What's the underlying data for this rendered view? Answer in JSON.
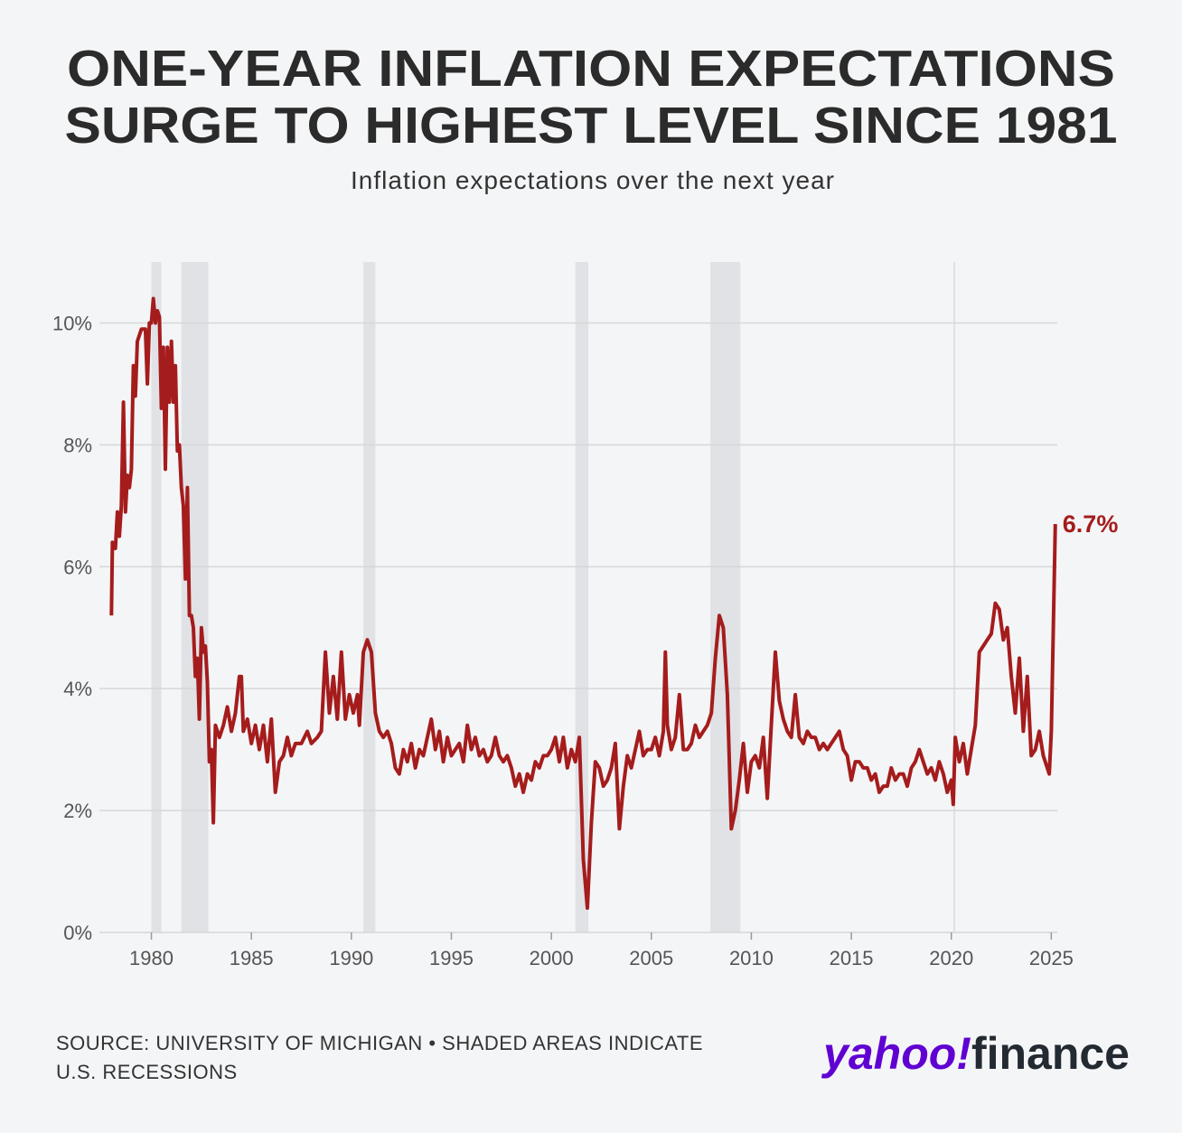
{
  "chart_data": {
    "type": "line",
    "title": [
      "ONE-YEAR INFLATION EXPECTATIONS",
      "SURGE TO HIGHEST LEVEL SINCE 1981"
    ],
    "subtitle": "Inflation expectations over the next year",
    "source": [
      "SOURCE: UNIVERSITY OF MICHIGAN • SHADED AREAS INDICATE",
      "U.S. RECESSIONS"
    ],
    "branding": {
      "brand": "yahoo!",
      "product": "finance"
    },
    "xlim": [
      1977.4,
      2025.3
    ],
    "ylim": [
      0,
      11
    ],
    "xticks": [
      1980,
      1985,
      1990,
      1995,
      2000,
      2005,
      2010,
      2015,
      2020,
      2025
    ],
    "yticks": [
      {
        "value": 0,
        "label": "0%"
      },
      {
        "value": 2,
        "label": "2%"
      },
      {
        "value": 4,
        "label": "4%"
      },
      {
        "value": 6,
        "label": "6%"
      },
      {
        "value": 8,
        "label": "8%"
      },
      {
        "value": 10,
        "label": "10%"
      }
    ],
    "grid": true,
    "recessions": [
      [
        1980.0,
        1980.5
      ],
      [
        1981.5,
        1982.85
      ],
      [
        1990.6,
        1991.2
      ],
      [
        2001.2,
        2001.85
      ],
      [
        2007.95,
        2009.45
      ],
      [
        2020.1,
        2020.2
      ]
    ],
    "annotations": [
      {
        "text": "6.7%",
        "x": 2025.2,
        "y": 6.7
      }
    ],
    "series": [
      {
        "name": "One-year inflation expectations",
        "color": "#a51c1c",
        "x": [
          1978.0,
          1978.05,
          1978.2,
          1978.3,
          1978.4,
          1978.5,
          1978.6,
          1978.7,
          1978.8,
          1978.9,
          1979.0,
          1979.1,
          1979.2,
          1979.3,
          1979.5,
          1979.7,
          1979.8,
          1979.9,
          1980.0,
          1980.1,
          1980.2,
          1980.3,
          1980.4,
          1980.5,
          1980.6,
          1980.7,
          1980.8,
          1980.9,
          1981.0,
          1981.1,
          1981.2,
          1981.3,
          1981.4,
          1981.5,
          1981.6,
          1981.7,
          1981.8,
          1981.9,
          1982.0,
          1982.1,
          1982.2,
          1982.3,
          1982.4,
          1982.5,
          1982.6,
          1982.7,
          1982.8,
          1982.9,
          1983.0,
          1983.1,
          1983.2,
          1983.4,
          1983.6,
          1983.8,
          1984.0,
          1984.2,
          1984.4,
          1984.5,
          1984.6,
          1984.8,
          1985.0,
          1985.2,
          1985.4,
          1985.6,
          1985.8,
          1986.0,
          1986.2,
          1986.4,
          1986.6,
          1986.8,
          1987.0,
          1987.2,
          1987.5,
          1987.8,
          1988.0,
          1988.3,
          1988.5,
          1988.7,
          1988.9,
          1989.1,
          1989.3,
          1989.5,
          1989.7,
          1989.9,
          1990.1,
          1990.3,
          1990.4,
          1990.6,
          1990.8,
          1991.0,
          1991.2,
          1991.4,
          1991.6,
          1991.8,
          1992.0,
          1992.2,
          1992.4,
          1992.6,
          1992.8,
          1993.0,
          1993.2,
          1993.4,
          1993.6,
          1993.8,
          1994.0,
          1994.2,
          1994.4,
          1994.6,
          1994.8,
          1995.0,
          1995.2,
          1995.4,
          1995.6,
          1995.8,
          1996.0,
          1996.2,
          1996.4,
          1996.6,
          1996.8,
          1997.0,
          1997.2,
          1997.4,
          1997.6,
          1997.8,
          1998.0,
          1998.2,
          1998.4,
          1998.6,
          1998.8,
          1999.0,
          1999.2,
          1999.4,
          1999.6,
          1999.8,
          2000.0,
          2000.2,
          2000.4,
          2000.6,
          2000.8,
          2001.0,
          2001.2,
          2001.4,
          2001.6,
          2001.8,
          2002.0,
          2002.2,
          2002.4,
          2002.6,
          2002.8,
          2003.0,
          2003.2,
          2003.4,
          2003.6,
          2003.8,
          2004.0,
          2004.2,
          2004.4,
          2004.6,
          2004.8,
          2005.0,
          2005.2,
          2005.4,
          2005.6,
          2005.7,
          2005.8,
          2006.0,
          2006.2,
          2006.4,
          2006.6,
          2006.8,
          2007.0,
          2007.2,
          2007.4,
          2007.6,
          2007.8,
          2008.0,
          2008.2,
          2008.4,
          2008.6,
          2008.8,
          2009.0,
          2009.2,
          2009.4,
          2009.6,
          2009.8,
          2010.0,
          2010.2,
          2010.4,
          2010.6,
          2010.8,
          2011.0,
          2011.2,
          2011.4,
          2011.6,
          2011.8,
          2012.0,
          2012.2,
          2012.4,
          2012.6,
          2012.8,
          2013.0,
          2013.2,
          2013.4,
          2013.6,
          2013.8,
          2014.0,
          2014.2,
          2014.4,
          2014.6,
          2014.8,
          2015.0,
          2015.2,
          2015.4,
          2015.6,
          2015.8,
          2016.0,
          2016.2,
          2016.4,
          2016.6,
          2016.8,
          2017.0,
          2017.2,
          2017.4,
          2017.6,
          2017.8,
          2018.0,
          2018.2,
          2018.4,
          2018.6,
          2018.8,
          2019.0,
          2019.2,
          2019.4,
          2019.6,
          2019.8,
          2020.0,
          2020.1,
          2020.2,
          2020.4,
          2020.6,
          2020.8,
          2021.0,
          2021.2,
          2021.4,
          2021.6,
          2021.8,
          2022.0,
          2022.2,
          2022.4,
          2022.6,
          2022.8,
          2023.0,
          2023.2,
          2023.4,
          2023.6,
          2023.8,
          2024.0,
          2024.2,
          2024.4,
          2024.6,
          2024.8,
          2024.9,
          2025.0,
          2025.1,
          2025.2
        ],
        "values": [
          5.2,
          6.4,
          6.3,
          6.9,
          6.5,
          7.0,
          8.7,
          6.9,
          7.5,
          7.3,
          7.6,
          9.3,
          8.8,
          9.7,
          9.9,
          9.9,
          9.0,
          10.0,
          10.0,
          10.4,
          10.0,
          10.2,
          10.1,
          8.6,
          9.6,
          7.6,
          9.6,
          8.7,
          9.7,
          8.7,
          9.3,
          7.9,
          8.0,
          7.3,
          7.0,
          5.8,
          7.3,
          5.2,
          5.2,
          5.0,
          4.2,
          4.5,
          3.5,
          5.0,
          4.6,
          4.7,
          4.1,
          2.8,
          3.0,
          1.8,
          3.4,
          3.2,
          3.4,
          3.7,
          3.3,
          3.6,
          4.2,
          4.2,
          3.3,
          3.5,
          3.1,
          3.4,
          3.0,
          3.4,
          2.8,
          3.5,
          2.3,
          2.8,
          2.9,
          3.2,
          2.9,
          3.1,
          3.1,
          3.3,
          3.1,
          3.2,
          3.3,
          4.6,
          3.6,
          4.2,
          3.5,
          4.6,
          3.5,
          3.9,
          3.6,
          3.9,
          3.4,
          4.6,
          4.8,
          4.6,
          3.6,
          3.3,
          3.2,
          3.3,
          3.1,
          2.7,
          2.6,
          3.0,
          2.8,
          3.1,
          2.7,
          3.0,
          2.9,
          3.2,
          3.5,
          3.0,
          3.3,
          2.8,
          3.2,
          2.9,
          3.0,
          3.1,
          2.8,
          3.4,
          3.0,
          3.2,
          2.9,
          3.0,
          2.8,
          2.9,
          3.2,
          2.9,
          2.8,
          2.9,
          2.7,
          2.4,
          2.6,
          2.3,
          2.6,
          2.5,
          2.8,
          2.7,
          2.9,
          2.9,
          3.0,
          3.2,
          2.8,
          3.2,
          2.7,
          3.0,
          2.8,
          3.2,
          1.2,
          0.4,
          1.8,
          2.8,
          2.7,
          2.4,
          2.5,
          2.7,
          3.1,
          1.7,
          2.4,
          2.9,
          2.7,
          3.0,
          3.3,
          2.9,
          3.0,
          3.0,
          3.2,
          2.9,
          3.3,
          4.6,
          3.4,
          3.0,
          3.2,
          3.9,
          3.0,
          3.0,
          3.1,
          3.4,
          3.2,
          3.3,
          3.4,
          3.6,
          4.5,
          5.2,
          5.0,
          3.9,
          1.7,
          2.0,
          2.5,
          3.1,
          2.3,
          2.8,
          2.9,
          2.7,
          3.2,
          2.2,
          3.4,
          4.6,
          3.8,
          3.5,
          3.3,
          3.2,
          3.9,
          3.2,
          3.1,
          3.3,
          3.2,
          3.2,
          3.0,
          3.1,
          3.0,
          3.1,
          3.2,
          3.3,
          3.0,
          2.9,
          2.5,
          2.8,
          2.8,
          2.7,
          2.7,
          2.5,
          2.6,
          2.3,
          2.4,
          2.4,
          2.7,
          2.5,
          2.6,
          2.6,
          2.4,
          2.7,
          2.8,
          3.0,
          2.8,
          2.6,
          2.7,
          2.5,
          2.8,
          2.6,
          2.3,
          2.5,
          2.1,
          3.2,
          2.8,
          3.1,
          2.6,
          3.0,
          3.4,
          4.6,
          4.7,
          4.8,
          4.9,
          5.4,
          5.3,
          4.8,
          5.0,
          4.2,
          3.6,
          4.5,
          3.3,
          4.2,
          2.9,
          3.0,
          3.3,
          2.9,
          2.7,
          2.6,
          3.3,
          5.0,
          6.7
        ]
      }
    ]
  }
}
